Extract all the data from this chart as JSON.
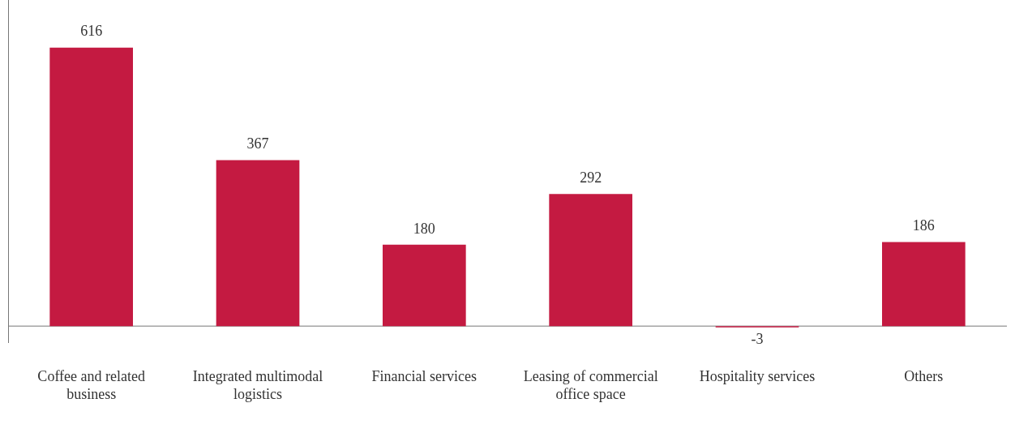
{
  "chart_data": {
    "type": "bar",
    "categories": [
      "Coffee and related business",
      "Integrated multimodal logistics",
      "Financial services",
      "Leasing of commercial office space",
      "Hospitality services",
      "Others"
    ],
    "values": [
      616,
      367,
      180,
      292,
      -3,
      186
    ],
    "color": "#c41a41",
    "data_labels": true,
    "grid": false,
    "legend": false
  }
}
